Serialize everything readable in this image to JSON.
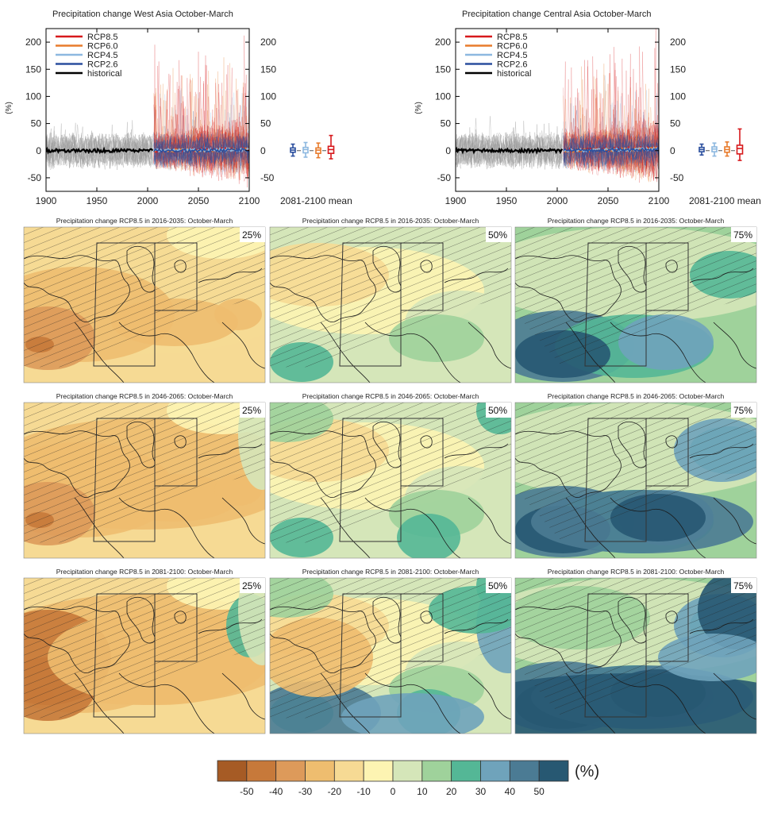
{
  "colors": {
    "RCP8.5": "#d7191c",
    "RCP6.0": "#e87b2c",
    "RCP4.5": "#8db8e0",
    "RCP2.6": "#2b4f9e",
    "historical": "#000000",
    "hist_spread": "#9a9a9a"
  },
  "timeseries_panels": [
    {
      "title": "Precipitation change West Asia October-March",
      "ylabel": "(%)",
      "mean_label": "2081-2100 mean",
      "legend": [
        "RCP8.5",
        "RCP6.0",
        "RCP4.5",
        "RCP2.6",
        "historical"
      ],
      "xticks": [
        "1900",
        "1950",
        "2000",
        "2050",
        "2100"
      ],
      "yticks": [
        "-50",
        "0",
        "50",
        "100",
        "150",
        "200"
      ],
      "spike_scale": 1.0
    },
    {
      "title": "Precipitation change Central Asia October-March",
      "ylabel": "(%)",
      "mean_label": "2081-2100 mean",
      "legend": [
        "RCP8.5",
        "RCP6.0",
        "RCP4.5",
        "RCP2.6",
        "historical"
      ],
      "xticks": [
        "1900",
        "1950",
        "2000",
        "2050",
        "2100"
      ],
      "yticks": [
        "-50",
        "0",
        "50",
        "100",
        "150",
        "200"
      ],
      "spike_scale": 1.1
    }
  ],
  "map_rows": [
    {
      "title": "Precipitation change RCP8.5 in 2016-2035: October-March"
    },
    {
      "title": "Precipitation change RCP8.5 in 2046-2065: October-March"
    },
    {
      "title": "Precipitation change RCP8.5 in 2081-2100: October-March"
    }
  ],
  "percentiles": [
    "25%",
    "50%",
    "75%"
  ],
  "colorbar": {
    "unit": "(%)",
    "labels": [
      "-50",
      "-40",
      "-30",
      "-20",
      "-10",
      "0",
      "10",
      "20",
      "30",
      "40",
      "50"
    ],
    "colors": [
      "#a65b25",
      "#c7793a",
      "#dd9a5a",
      "#eebd6f",
      "#f6da94",
      "#fdf4b2",
      "#d5e6b9",
      "#9fd29b",
      "#54b796",
      "#6fa3bb",
      "#4b7b94",
      "#275872"
    ]
  },
  "chart_data": [
    {
      "type": "line",
      "title": "Precipitation change West Asia October-March",
      "xlabel": "",
      "ylabel": "(%)",
      "xlim": [
        1900,
        2100
      ],
      "ylim": [
        -75,
        225
      ],
      "series": [
        {
          "name": "historical",
          "x": [
            1900,
            2005
          ],
          "values": [
            0,
            0
          ]
        },
        {
          "name": "RCP8.5",
          "x": [
            2006,
            2100
          ],
          "values": [
            0,
            3
          ]
        },
        {
          "name": "RCP6.0",
          "x": [
            2006,
            2100
          ],
          "values": [
            0,
            2
          ]
        },
        {
          "name": "RCP4.5",
          "x": [
            2006,
            2100
          ],
          "values": [
            0,
            2
          ]
        },
        {
          "name": "RCP2.6",
          "x": [
            2006,
            2100
          ],
          "values": [
            0,
            1
          ]
        }
      ],
      "boxplots_2081_2100_mean": [
        {
          "name": "RCP2.6",
          "min": -10,
          "q1": -3,
          "median": 1,
          "q3": 5,
          "max": 12
        },
        {
          "name": "RCP4.5",
          "min": -12,
          "q1": -4,
          "median": 2,
          "q3": 6,
          "max": 15
        },
        {
          "name": "RCP6.0",
          "min": -13,
          "q1": -5,
          "median": 1,
          "q3": 5,
          "max": 14
        },
        {
          "name": "RCP8.5",
          "min": -15,
          "q1": -5,
          "median": 2,
          "q3": 8,
          "max": 28
        }
      ]
    },
    {
      "type": "line",
      "title": "Precipitation change Central Asia October-March",
      "xlabel": "",
      "ylabel": "(%)",
      "xlim": [
        1900,
        2100
      ],
      "ylim": [
        -75,
        225
      ],
      "series": [
        {
          "name": "historical",
          "x": [
            1900,
            2005
          ],
          "values": [
            0,
            0
          ]
        },
        {
          "name": "RCP8.5",
          "x": [
            2006,
            2100
          ],
          "values": [
            0,
            5
          ]
        },
        {
          "name": "RCP6.0",
          "x": [
            2006,
            2100
          ],
          "values": [
            0,
            3
          ]
        },
        {
          "name": "RCP4.5",
          "x": [
            2006,
            2100
          ],
          "values": [
            0,
            3
          ]
        },
        {
          "name": "RCP2.6",
          "x": [
            2006,
            2100
          ],
          "values": [
            0,
            2
          ]
        }
      ],
      "boxplots_2081_2100_mean": [
        {
          "name": "RCP2.6",
          "min": -8,
          "q1": -2,
          "median": 2,
          "q3": 6,
          "max": 12
        },
        {
          "name": "RCP4.5",
          "min": -10,
          "q1": -2,
          "median": 3,
          "q3": 7,
          "max": 14
        },
        {
          "name": "RCP6.0",
          "min": -10,
          "q1": -3,
          "median": 2,
          "q3": 7,
          "max": 16
        },
        {
          "name": "RCP8.5",
          "min": -18,
          "q1": -6,
          "median": 4,
          "q3": 10,
          "max": 40
        }
      ]
    }
  ]
}
